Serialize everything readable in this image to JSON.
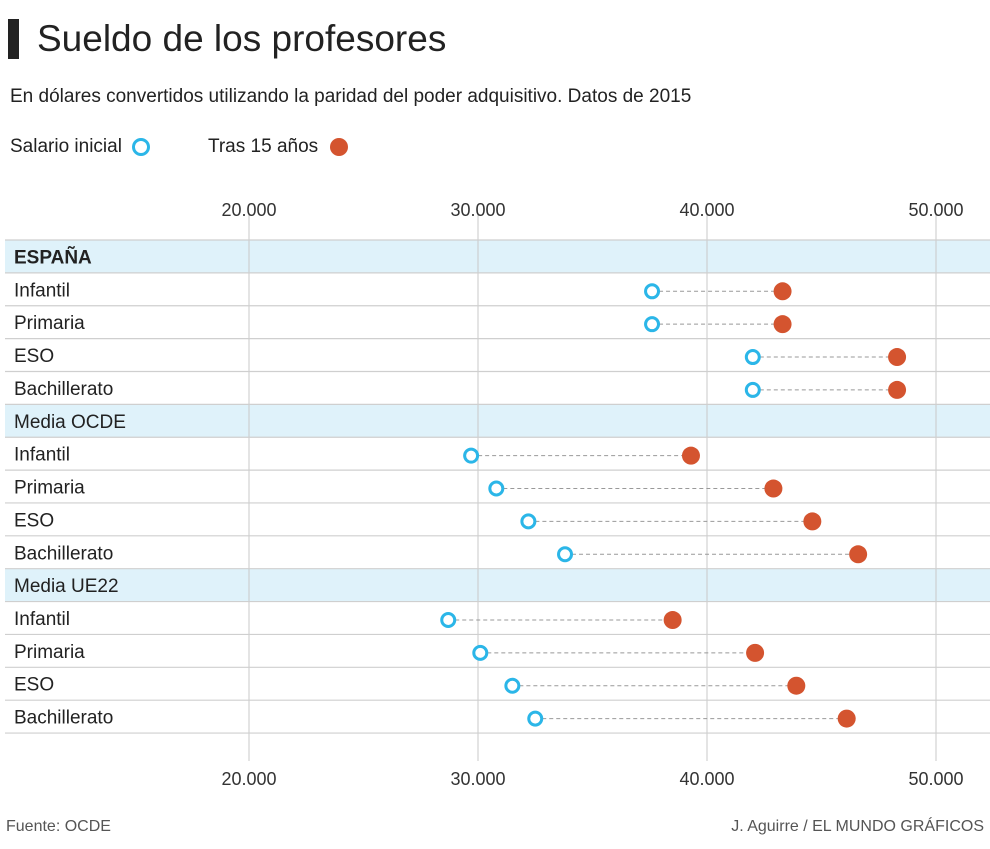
{
  "header": {
    "title": "Sueldo de los profesores",
    "subtitle": "En dólares convertidos utilizando la paridad del poder adquisitivo. Datos de 2015"
  },
  "footer": {
    "source": "Fuente: OCDE",
    "credit": "J. Aguirre / EL MUNDO GRÁFICOS"
  },
  "colors": {
    "initial": "#2bb6e8",
    "after15": "#d4542f",
    "group_bg": "#dff2fa"
  },
  "chart_data": {
    "type": "dot-range",
    "title": "Sueldo de los profesores",
    "xlim": [
      9300,
      52500
    ],
    "xticks": [
      20000,
      30000,
      40000,
      50000
    ],
    "xtick_labels": [
      "20.000",
      "30.000",
      "40.000",
      "50.000"
    ],
    "legend": [
      {
        "name": "Salario inicial",
        "marker": "open-circle"
      },
      {
        "name": "Tras 15 años",
        "marker": "filled-circle"
      }
    ],
    "legend_placement": "top-left",
    "groups": [
      {
        "name": "ESPAÑA",
        "rows": [
          {
            "label": "Infantil",
            "initial": 37600,
            "after15": 43300
          },
          {
            "label": "Primaria",
            "initial": 37600,
            "after15": 43300
          },
          {
            "label": "ESO",
            "initial": 42000,
            "after15": 48300
          },
          {
            "label": "Bachillerato",
            "initial": 42000,
            "after15": 48300
          }
        ]
      },
      {
        "name": "Media OCDE",
        "rows": [
          {
            "label": "Infantil",
            "initial": 29700,
            "after15": 39300
          },
          {
            "label": "Primaria",
            "initial": 30800,
            "after15": 42900
          },
          {
            "label": "ESO",
            "initial": 32200,
            "after15": 44600
          },
          {
            "label": "Bachillerato",
            "initial": 33800,
            "after15": 46600
          }
        ]
      },
      {
        "name": "Media UE22",
        "rows": [
          {
            "label": "Infantil",
            "initial": 28700,
            "after15": 38500
          },
          {
            "label": "Primaria",
            "initial": 30100,
            "after15": 42100
          },
          {
            "label": "ESO",
            "initial": 31500,
            "after15": 43900
          },
          {
            "label": "Bachillerato",
            "initial": 32500,
            "after15": 46100
          }
        ]
      }
    ]
  }
}
